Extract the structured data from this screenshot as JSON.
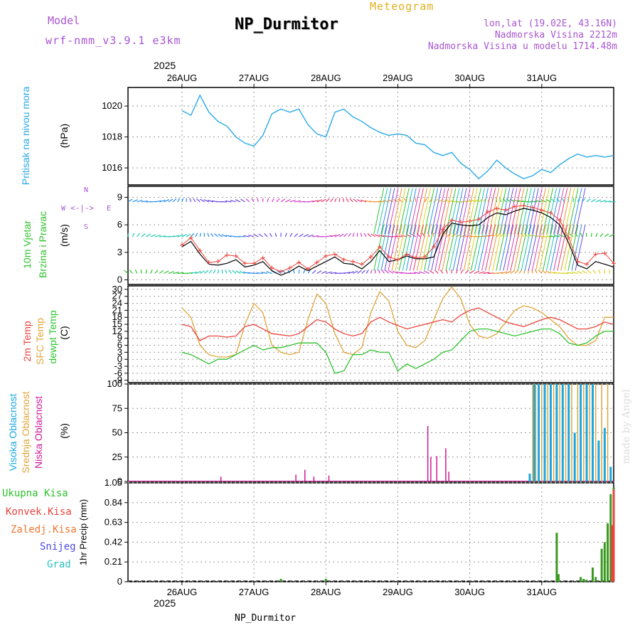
{
  "header": {
    "model_label": "Model",
    "model_name": "wrf-nmm_v3.9.1 e3km",
    "title": "NP_Durmitor",
    "product": "Meteogram",
    "coords": "lon,lat (19.02E, 43.16N)",
    "elevation": "Nadmorska Visina 2212m",
    "model_elevation": "Nadmorska Visina u modelu 1714.48m",
    "footer_station": "NP_Durmitor",
    "watermark": "made by Angel",
    "year_top": "2025",
    "year_bottom": "2025"
  },
  "colors": {
    "pressure": "#2aa9e8",
    "temp2m": "#e8443c",
    "sfc_temp": "#e0a53a",
    "dewpt": "#2fc22f",
    "wind_speed": "#000000",
    "wind_gust": "#e8443c",
    "cloud_high": "#1aa7e0",
    "cloud_mid": "#e0a53a",
    "cloud_low": "#cc1a99",
    "precip_total": "#3a9a20",
    "precip_conv": "#e8443c"
  },
  "chart_data": [
    {
      "type": "line",
      "panel": "pressure",
      "ylabel_parts": [
        "Pritisak na nivou mora",
        "(hPa)"
      ],
      "yticks": [
        "1016",
        "1018",
        "1020"
      ],
      "ylim": [
        1014.9,
        1021.2
      ],
      "days": [
        "26AUG",
        "27AUG",
        "28AUG",
        "29AUG",
        "30AUG",
        "31AUG"
      ],
      "x_hours": [
        0,
        3,
        6,
        9,
        12,
        15,
        18,
        21,
        24,
        27,
        30,
        33,
        36,
        39,
        42,
        45,
        48,
        51,
        54,
        57,
        60,
        63,
        66,
        69,
        72,
        75,
        78,
        81,
        84,
        87,
        90,
        93,
        96,
        99,
        102,
        105,
        108,
        111,
        114,
        117,
        120,
        123,
        126,
        129,
        132,
        135,
        138,
        141,
        144
      ],
      "series": [
        {
          "name": "SLP",
          "values": [
            1019.7,
            1019.4,
            1020.7,
            1019.6,
            1019.0,
            1018.7,
            1018.0,
            1017.6,
            1017.4,
            1018.1,
            1019.5,
            1019.8,
            1019.6,
            1019.8,
            1018.8,
            1018.2,
            1018.0,
            1019.6,
            1019.8,
            1019.3,
            1019.0,
            1018.6,
            1018.3,
            1018.1,
            1018.2,
            1018.1,
            1017.6,
            1017.5,
            1017.0,
            1016.8,
            1017.0,
            1016.3,
            1015.9,
            1015.3,
            1015.8,
            1016.5,
            1016.0,
            1015.6,
            1015.3,
            1015.5,
            1015.9,
            1015.7,
            1016.2,
            1016.6,
            1016.9,
            1016.7,
            1016.8,
            1016.7,
            1016.8
          ]
        }
      ]
    },
    {
      "type": "line",
      "panel": "wind",
      "ylabel_parts": [
        "10m Vjetar",
        "Brzina i Pravac",
        "(m/s)"
      ],
      "compass": [
        "N",
        "W",
        "E",
        "S"
      ],
      "yticks": [
        "0",
        "3",
        "6",
        "9"
      ],
      "ylim": [
        -0.5,
        10.2
      ],
      "x_hours": [
        0,
        3,
        6,
        9,
        12,
        15,
        18,
        21,
        24,
        27,
        30,
        33,
        36,
        39,
        42,
        45,
        48,
        51,
        54,
        57,
        60,
        63,
        66,
        69,
        72,
        75,
        78,
        81,
        84,
        87,
        90,
        93,
        96,
        99,
        102,
        105,
        108,
        111,
        114,
        117,
        120,
        123,
        126,
        129,
        132,
        135,
        138,
        141,
        144
      ],
      "series": [
        {
          "name": "speed",
          "values": [
            3.6,
            4.2,
            2.8,
            1.7,
            1.6,
            1.8,
            2.2,
            1.4,
            1.6,
            2.0,
            1.0,
            0.5,
            0.9,
            1.5,
            1.0,
            1.5,
            2.0,
            2.5,
            1.8,
            1.7,
            1.2,
            2.0,
            3.2,
            2.0,
            2.2,
            2.6,
            2.3,
            2.3,
            2.5,
            5.0,
            6.2,
            6.0,
            5.9,
            6.0,
            6.8,
            7.3,
            7.1,
            7.5,
            7.8,
            7.6,
            7.3,
            6.8,
            6.0,
            4.0,
            1.6,
            1.2,
            2.0,
            1.7,
            1.4
          ]
        },
        {
          "name": "gust",
          "values": [
            3.8,
            4.6,
            3.2,
            1.9,
            2.0,
            2.7,
            2.6,
            1.8,
            1.8,
            2.4,
            1.3,
            0.9,
            1.3,
            1.9,
            1.2,
            1.9,
            2.6,
            2.8,
            2.2,
            2.0,
            1.7,
            2.5,
            3.6,
            2.5,
            2.2,
            2.8,
            2.4,
            2.5,
            3.6,
            5.5,
            6.5,
            6.3,
            6.4,
            6.6,
            7.4,
            7.8,
            7.6,
            8.0,
            8.1,
            7.9,
            7.6,
            7.3,
            6.5,
            4.6,
            2.0,
            1.7,
            2.8,
            2.9,
            1.8
          ]
        }
      ]
    },
    {
      "type": "line",
      "panel": "temperature",
      "ylabel_parts": [
        "2m Temp",
        "SFC Temp",
        "dewpt Temp",
        "(C)"
      ],
      "yticks": [
        "-9",
        "-6",
        "-3",
        "0",
        "3",
        "6",
        "9",
        "12",
        "15",
        "18",
        "21",
        "24",
        "27",
        "30"
      ],
      "ylim": [
        -10,
        31.5
      ],
      "x_hours": [
        0,
        3,
        6,
        9,
        12,
        15,
        18,
        21,
        24,
        27,
        30,
        33,
        36,
        39,
        42,
        45,
        48,
        51,
        54,
        57,
        60,
        63,
        66,
        69,
        72,
        75,
        78,
        81,
        84,
        87,
        90,
        93,
        96,
        99,
        102,
        105,
        108,
        111,
        114,
        117,
        120,
        123,
        126,
        129,
        132,
        135,
        138,
        141,
        144
      ],
      "series": [
        {
          "name": "2m Temp",
          "values": [
            15,
            14,
            8,
            10,
            10,
            9.5,
            10,
            14,
            15,
            13,
            11,
            10.5,
            10,
            11,
            14,
            17,
            16,
            13,
            11,
            10,
            11,
            16,
            18,
            16,
            14.5,
            13,
            14,
            15,
            16,
            17,
            16,
            19,
            21,
            22,
            20,
            18,
            16,
            15,
            14,
            15.5,
            17,
            18,
            17,
            15,
            13,
            13,
            14,
            16,
            15
          ]
        },
        {
          "name": "SFC Temp",
          "values": [
            22,
            18,
            6,
            2,
            1,
            1,
            2,
            15,
            24,
            20,
            6,
            3,
            2,
            3,
            17,
            28,
            24,
            11,
            3,
            2,
            5,
            20,
            29,
            25,
            12,
            6,
            5,
            8,
            17,
            26,
            31,
            26,
            15,
            10,
            9,
            11,
            16,
            21,
            23,
            22,
            20,
            17,
            14,
            9,
            6,
            6,
            8,
            18,
            18
          ]
        },
        {
          "name": "dewpt",
          "values": [
            3,
            2,
            0,
            -2,
            0,
            0,
            2,
            4,
            6,
            4,
            5,
            5,
            6,
            7,
            7,
            7,
            3,
            -6,
            -5,
            2,
            2,
            4,
            3,
            3,
            -5,
            -2,
            -4,
            -2,
            0,
            3,
            4,
            8,
            12,
            13,
            13,
            12,
            11,
            10,
            11,
            12,
            13,
            13,
            11,
            7,
            6,
            7,
            10,
            12,
            12
          ]
        }
      ]
    },
    {
      "type": "bar",
      "panel": "clouds",
      "ylabel_parts": [
        "Visoka Oblacnost",
        "Srednja Oblacnost",
        "Niska Oblacnost",
        "(%)"
      ],
      "yticks": [
        "0",
        "25",
        "50",
        "75",
        "100"
      ],
      "ylim": [
        0,
        100
      ],
      "series": [
        {
          "name": "Niska Oblacnost",
          "x_hours": [
            13,
            38,
            41,
            44,
            49,
            82,
            83,
            85,
            88,
            89
          ],
          "values": [
            5,
            7,
            12,
            5,
            6,
            57,
            25,
            26,
            34,
            10
          ]
        },
        {
          "name": "Srednja Oblacnost",
          "x_hours": [
            117,
            118,
            120,
            122,
            124,
            126,
            128,
            130,
            132,
            134,
            136,
            138,
            140,
            142
          ],
          "values": [
            100,
            100,
            100,
            100,
            100,
            100,
            100,
            100,
            100,
            100,
            100,
            100,
            100,
            100
          ]
        },
        {
          "name": "Visoka Oblacnost",
          "x_hours": [
            116,
            117.5,
            119,
            121,
            123,
            125,
            127,
            129,
            131,
            133,
            135,
            137,
            139,
            141,
            143
          ],
          "values": [
            8,
            100,
            100,
            100,
            100,
            100,
            100,
            100,
            50,
            100,
            100,
            100,
            42,
            55,
            15
          ]
        }
      ]
    },
    {
      "type": "bar",
      "panel": "precipitation",
      "ylabel_parts": [
        "Ukupna Kisa",
        "Konvek.Kisa",
        "Zaledj.Kisa",
        "Snijeg",
        "Grad",
        "1hr Precip (mm)"
      ],
      "yticks": [
        "0",
        "0.21",
        "0.42",
        "0.63",
        "0.84",
        "1.05"
      ],
      "ylim": [
        0,
        1.05
      ],
      "days": [
        "26AUG",
        "27AUG",
        "28AUG",
        "29AUG",
        "30AUG",
        "31AUG"
      ],
      "series": [
        {
          "name": "Ukupna Kisa",
          "x_hours": [
            33,
            48,
            125,
            125.6,
            133,
            134,
            135,
            137,
            138,
            140,
            141,
            142,
            143,
            144
          ],
          "values": [
            0.03,
            0.03,
            0.52,
            0.08,
            0.05,
            0.03,
            0.02,
            0.15,
            0.05,
            0.35,
            0.42,
            0.62,
            0.93,
            1.0
          ]
        },
        {
          "name": "Konvek.Kisa",
          "x_hours": [
            143.5,
            144
          ],
          "values": [
            0.6,
            0.98
          ]
        }
      ]
    }
  ]
}
